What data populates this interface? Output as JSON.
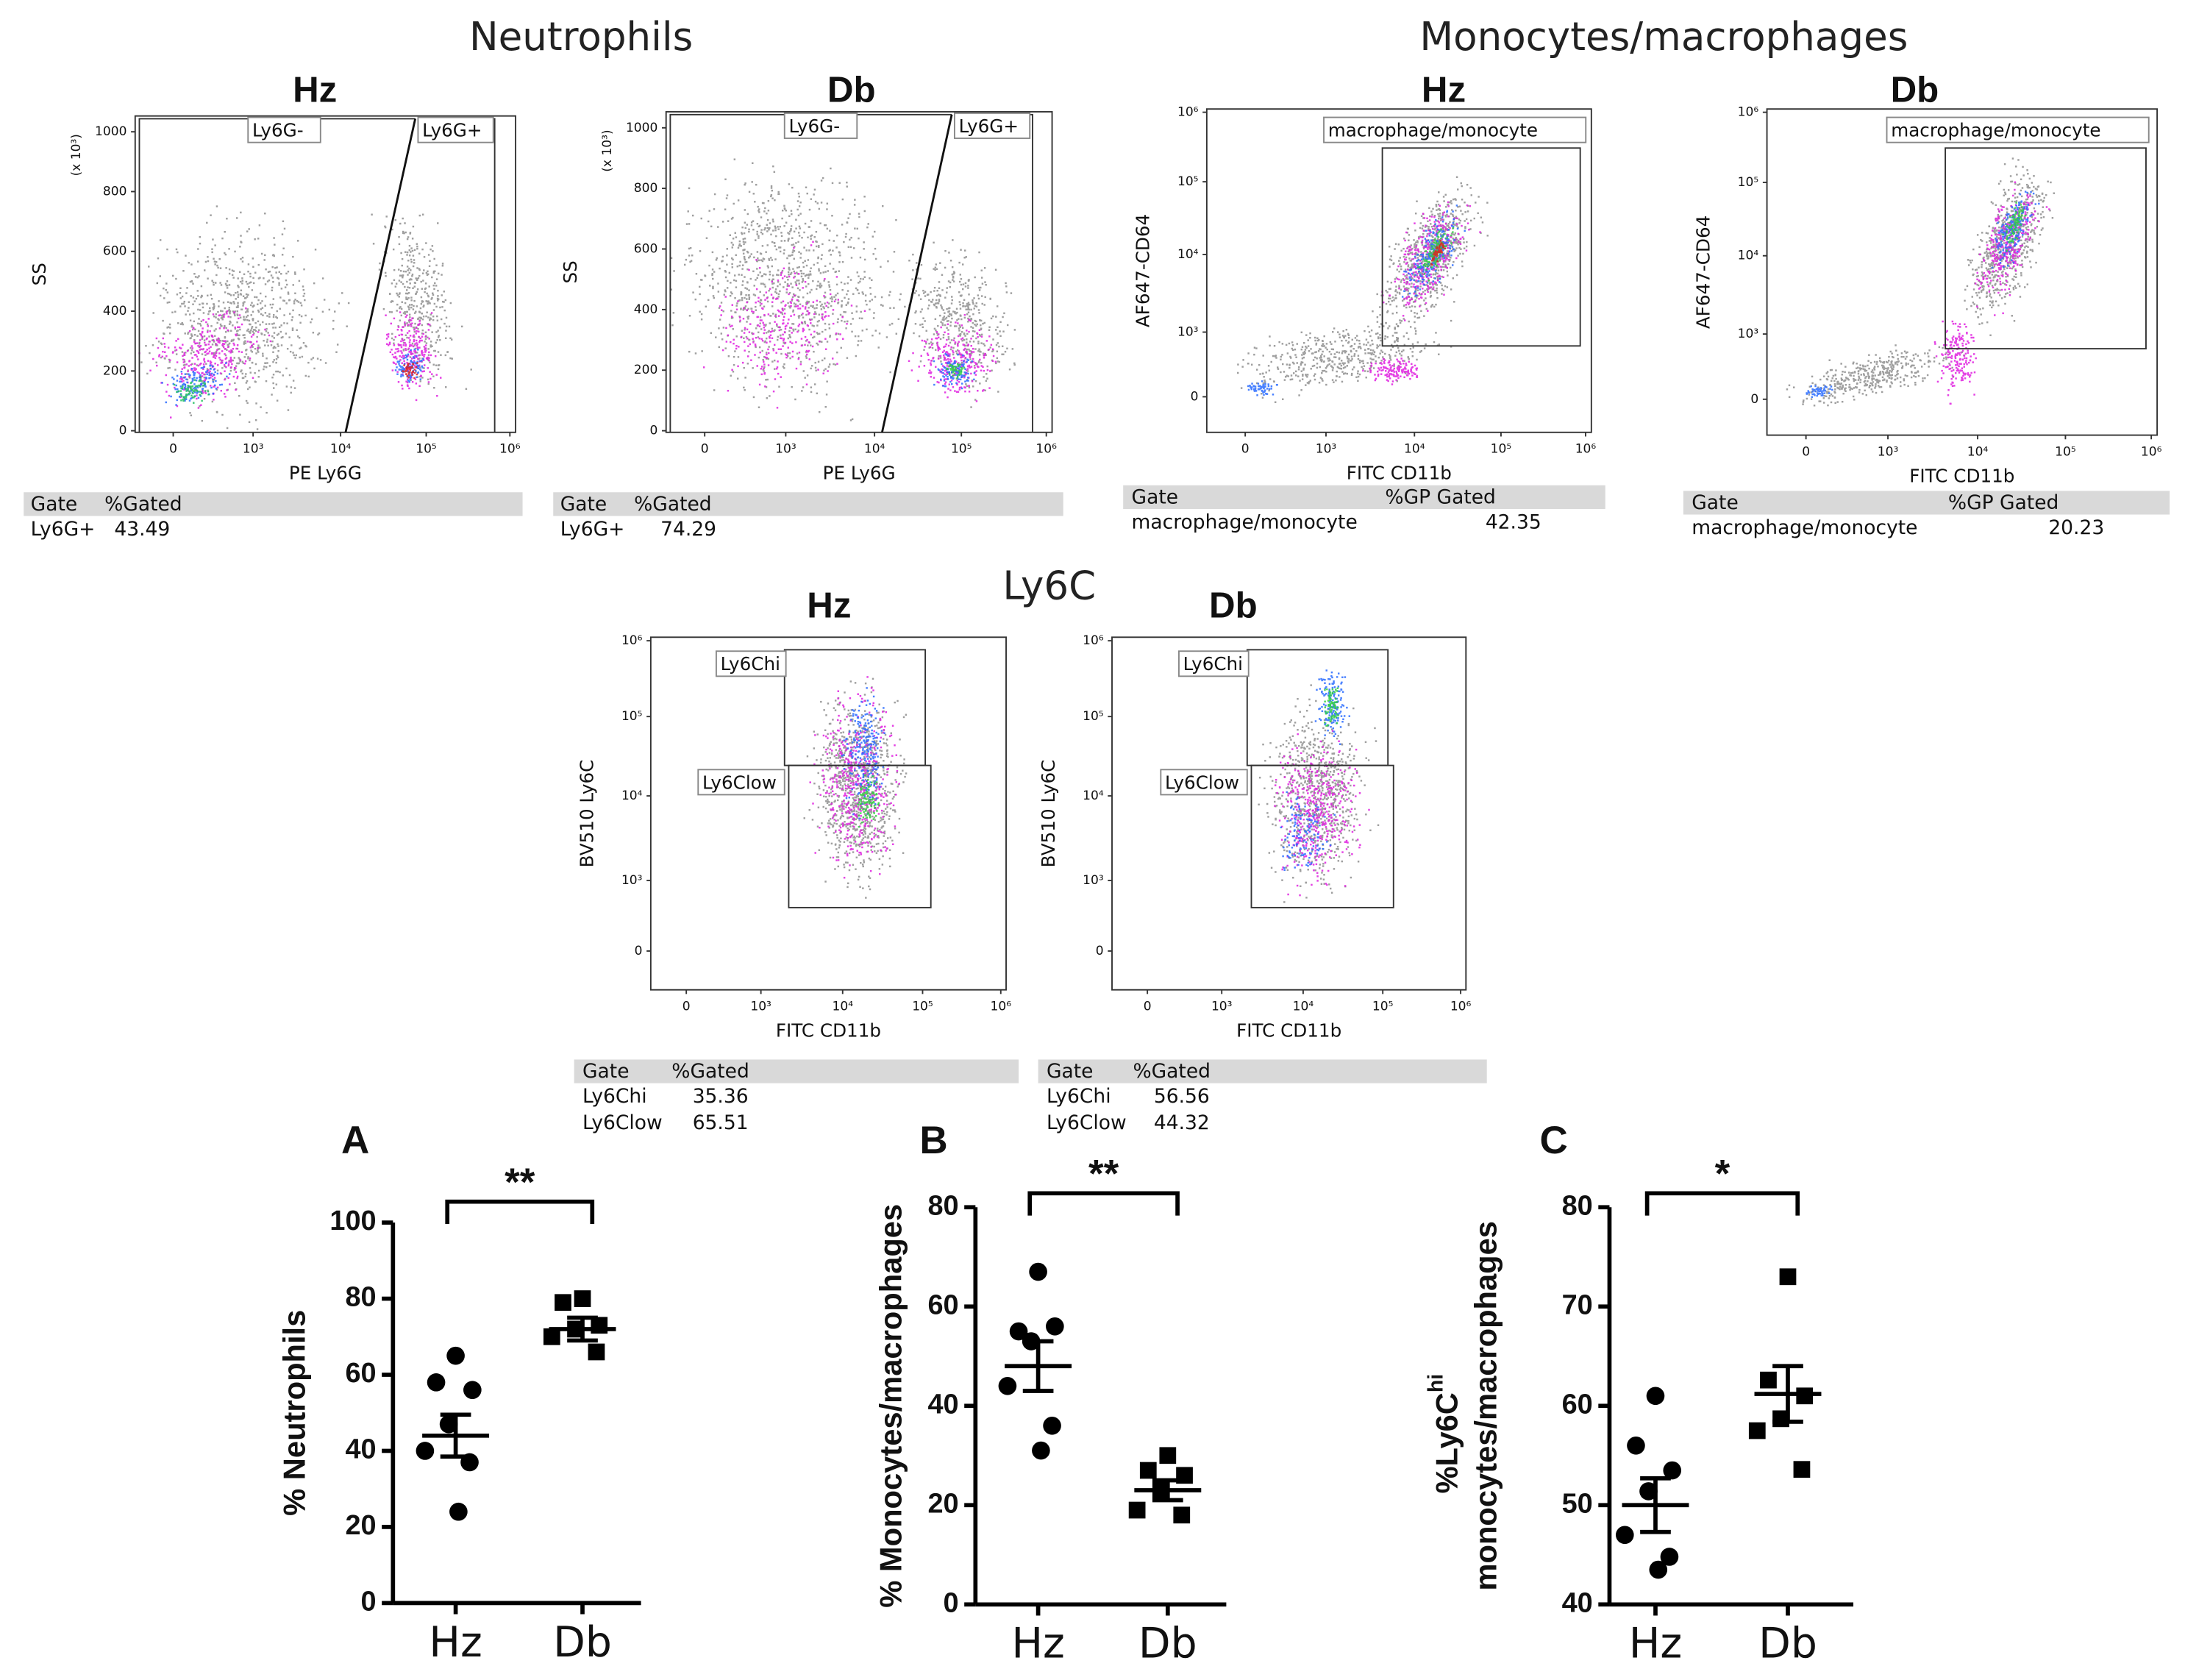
{
  "sections": [
    "Neutrophils",
    "Monocytes/macrophages",
    "Ly6C"
  ],
  "flow_plots": [
    {
      "title": "Hz",
      "x_label": "PE Ly6G",
      "y_label": "SS",
      "y_scale_label": "(x 10³)",
      "xticks": [
        "0",
        "10³",
        "10⁴",
        "10⁵",
        "10⁶"
      ],
      "yticks": [
        0,
        200,
        400,
        600,
        800,
        1000
      ],
      "gates": [
        "Ly6G-",
        "Ly6G+"
      ],
      "table": {
        "header": [
          "Gate",
          "%Gated"
        ],
        "rows": [
          [
            "Ly6G+",
            "43.49"
          ]
        ]
      }
    },
    {
      "title": "Db",
      "x_label": "PE Ly6G",
      "y_label": "SS",
      "y_scale_label": "(x 10³)",
      "xticks": [
        "0",
        "10³",
        "10⁴",
        "10⁵",
        "10⁶"
      ],
      "yticks": [
        0,
        200,
        400,
        600,
        800,
        1000
      ],
      "gates": [
        "Ly6G-",
        "Ly6G+"
      ],
      "table": {
        "header": [
          "Gate",
          "%Gated"
        ],
        "rows": [
          [
            "Ly6G+",
            "74.29"
          ]
        ]
      }
    },
    {
      "title": "Hz",
      "x_label": "FITC CD11b",
      "y_label": "AF647-CD64",
      "xticks": [
        "0",
        "10³",
        "10⁴",
        "10⁵",
        "10⁶"
      ],
      "yticks": [
        "0",
        "10³",
        "10⁴",
        "10⁵",
        "10⁶"
      ],
      "gates": [
        "macrophage/monocyte"
      ],
      "table": {
        "header": [
          "Gate",
          "%GP Gated"
        ],
        "rows": [
          [
            "macrophage/monocyte",
            "42.35"
          ]
        ]
      }
    },
    {
      "title": "Db",
      "x_label": "FITC CD11b",
      "y_label": "AF647-CD64",
      "xticks": [
        "0",
        "10³",
        "10⁴",
        "10⁵",
        "10⁶"
      ],
      "yticks": [
        "0",
        "10³",
        "10⁴",
        "10⁵",
        "10⁶"
      ],
      "gates": [
        "macrophage/monocyte"
      ],
      "table": {
        "header": [
          "Gate",
          "%GP Gated"
        ],
        "rows": [
          [
            "macrophage/monocyte",
            "20.23"
          ]
        ]
      }
    },
    {
      "title": "Hz",
      "x_label": "FITC CD11b",
      "y_label": "BV510 Ly6C",
      "xticks": [
        "0",
        "10³",
        "10⁴",
        "10⁵",
        "10⁶"
      ],
      "yticks": [
        "0",
        "10³",
        "10⁴",
        "10⁵",
        "10⁶"
      ],
      "gates": [
        "Ly6Chi",
        "Ly6Clow"
      ],
      "table": {
        "header": [
          "Gate",
          "%Gated"
        ],
        "rows": [
          [
            "Ly6Chi",
            "35.36"
          ],
          [
            "Ly6Clow",
            "65.51"
          ]
        ]
      }
    },
    {
      "title": "Db",
      "x_label": "FITC CD11b",
      "y_label": "BV510 Ly6C",
      "xticks": [
        "0",
        "10³",
        "10⁴",
        "10⁵",
        "10⁶"
      ],
      "yticks": [
        "0",
        "10³",
        "10⁴",
        "10⁵",
        "10⁶"
      ],
      "gates": [
        "Ly6Chi",
        "Ly6Clow"
      ],
      "table": {
        "header": [
          "Gate",
          "%Gated"
        ],
        "rows": [
          [
            "Ly6Chi",
            "56.56"
          ],
          [
            "Ly6Clow",
            "44.32"
          ]
        ]
      }
    }
  ],
  "chart_data": [
    {
      "type": "dot",
      "panel": "A",
      "ylabel": "% Neutrophils",
      "categories": [
        "Hz",
        "Db"
      ],
      "markers": [
        "circle",
        "square"
      ],
      "color": "#000000",
      "groups": [
        {
          "values": [
            65,
            58,
            56,
            47,
            40,
            37,
            24
          ],
          "mean": 44,
          "sem": 5.5
        },
        {
          "values": [
            80,
            79,
            73,
            72,
            70,
            66
          ],
          "mean": 72,
          "sem": 3
        }
      ],
      "ylim": [
        0,
        100
      ],
      "yticks": [
        0,
        20,
        40,
        60,
        80,
        100
      ],
      "significance": "**"
    },
    {
      "type": "dot",
      "panel": "B",
      "ylabel": "% Monocytes/macrophages",
      "categories": [
        "Hz",
        "Db"
      ],
      "markers": [
        "circle",
        "square"
      ],
      "color": "#000000",
      "groups": [
        {
          "values": [
            67,
            55,
            56,
            53,
            44,
            36,
            31
          ],
          "mean": 48,
          "sem": 5
        },
        {
          "values": [
            30,
            27,
            26,
            23,
            19,
            18
          ],
          "mean": 23,
          "sem": 2
        }
      ],
      "ylim": [
        0,
        80
      ],
      "yticks": [
        0,
        20,
        40,
        60,
        80
      ],
      "significance": "**"
    },
    {
      "type": "dot",
      "panel": "C",
      "ylabel_lines": [
        "%Ly6C",
        "monocytes/macrophages"
      ],
      "ylabel_sup": "hi",
      "categories": [
        "Hz",
        "Db"
      ],
      "markers": [
        "circle",
        "square"
      ],
      "color": "#000000",
      "groups": [
        {
          "values": [
            61,
            56,
            53.5,
            51.4,
            47,
            44.8,
            43.5
          ],
          "mean": 50,
          "sem": 2.7
        },
        {
          "values": [
            73,
            62.6,
            61,
            58.7,
            57.5,
            53.6
          ],
          "mean": 61.2,
          "sem": 2.8
        }
      ],
      "ylim": [
        40,
        80
      ],
      "yticks": [
        40,
        50,
        60,
        70,
        80
      ],
      "significance": "*"
    }
  ]
}
